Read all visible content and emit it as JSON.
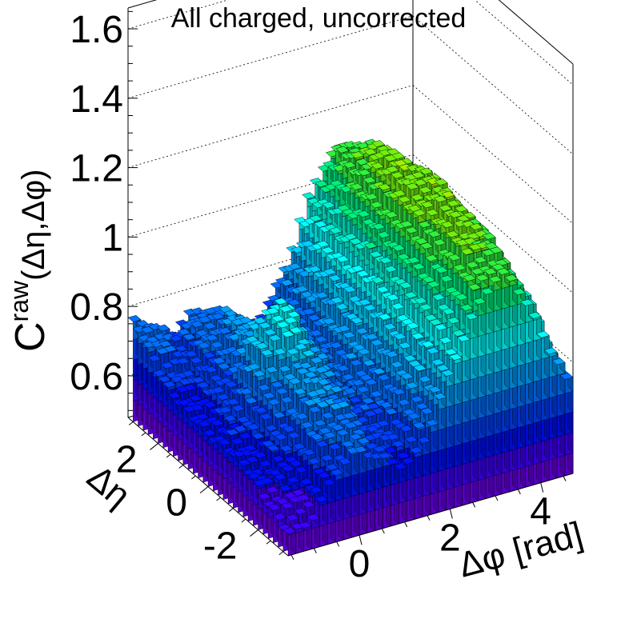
{
  "chart_data": {
    "type": "lego3d",
    "title": "All charged, uncorrected",
    "xlabel": "Δφ [rad]",
    "ylabel": "Δη",
    "zlabel_main": "C",
    "zlabel_sup": "raw",
    "zlabel_args": "(Δη,Δφ)",
    "xlim": [
      -1.571,
      4.712
    ],
    "ylim": [
      -3.2,
      3.2
    ],
    "zlim": [
      0.48,
      1.66
    ],
    "x_ticks": [
      "0",
      "2",
      "4"
    ],
    "x_tick_values": [
      0,
      2,
      4
    ],
    "y_ticks": [
      "-2",
      "0",
      "2"
    ],
    "y_tick_values": [
      -2,
      0,
      2
    ],
    "z_ticks": [
      "0.6",
      "0.8",
      "1",
      "1.2",
      "1.4",
      "1.6"
    ],
    "z_tick_values": [
      0.6,
      0.8,
      1.0,
      1.2,
      1.4,
      1.6
    ],
    "grid": true,
    "nx": 36,
    "ny": 32,
    "surface": {
      "base": 0.63,
      "components": [
        {
          "desc": "away-side ridge",
          "amplitude": 0.56,
          "center_dphi": 3.14,
          "sigma_dphi": 1.05
        },
        {
          "desc": "near-side ridge",
          "amplitude": 0.18,
          "center_dphi": 0.0,
          "sigma_dphi": 0.55
        },
        {
          "desc": "near-side peak",
          "amplitude": 0.12,
          "center_deta": 0.0,
          "sigma_deta": 0.5
        },
        {
          "desc": "eta falloff",
          "amplitude": -0.1,
          "power": 2
        }
      ],
      "edge_value_near_corner": 0.85,
      "edge_value_front": 0.63,
      "max_value": 1.25
    },
    "palette": [
      "#6a00f0",
      "#3f00ff",
      "#0010ff",
      "#0040ff",
      "#0070ff",
      "#00a0ff",
      "#00d0ff",
      "#00ffff",
      "#00f0d0",
      "#00f080",
      "#30f040",
      "#70f010",
      "#a0f000"
    ]
  }
}
